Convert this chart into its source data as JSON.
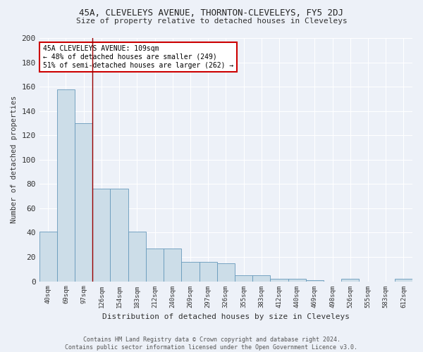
{
  "title": "45A, CLEVELEYS AVENUE, THORNTON-CLEVELEYS, FY5 2DJ",
  "subtitle": "Size of property relative to detached houses in Cleveleys",
  "xlabel": "Distribution of detached houses by size in Cleveleys",
  "ylabel": "Number of detached properties",
  "categories": [
    "40sqm",
    "69sqm",
    "97sqm",
    "126sqm",
    "154sqm",
    "183sqm",
    "212sqm",
    "240sqm",
    "269sqm",
    "297sqm",
    "326sqm",
    "355sqm",
    "383sqm",
    "412sqm",
    "440sqm",
    "469sqm",
    "498sqm",
    "526sqm",
    "555sqm",
    "583sqm",
    "612sqm"
  ],
  "values": [
    41,
    158,
    130,
    76,
    76,
    41,
    27,
    27,
    16,
    16,
    15,
    5,
    5,
    2,
    2,
    1,
    0,
    2,
    0,
    0,
    2
  ],
  "bar_color": "#ccdde8",
  "bar_edge_color": "#6699bb",
  "background_color": "#edf1f8",
  "grid_color": "#ffffff",
  "red_line_x": 2.5,
  "annotation_line1": "45A CLEVELEYS AVENUE: 109sqm",
  "annotation_line2": "← 48% of detached houses are smaller (249)",
  "annotation_line3": "51% of semi-detached houses are larger (262) →",
  "annotation_box_color": "white",
  "annotation_box_edge_color": "#cc0000",
  "footer": "Contains HM Land Registry data © Crown copyright and database right 2024.\nContains public sector information licensed under the Open Government Licence v3.0.",
  "ylim": [
    0,
    200
  ],
  "yticks": [
    0,
    20,
    40,
    60,
    80,
    100,
    120,
    140,
    160,
    180,
    200
  ]
}
